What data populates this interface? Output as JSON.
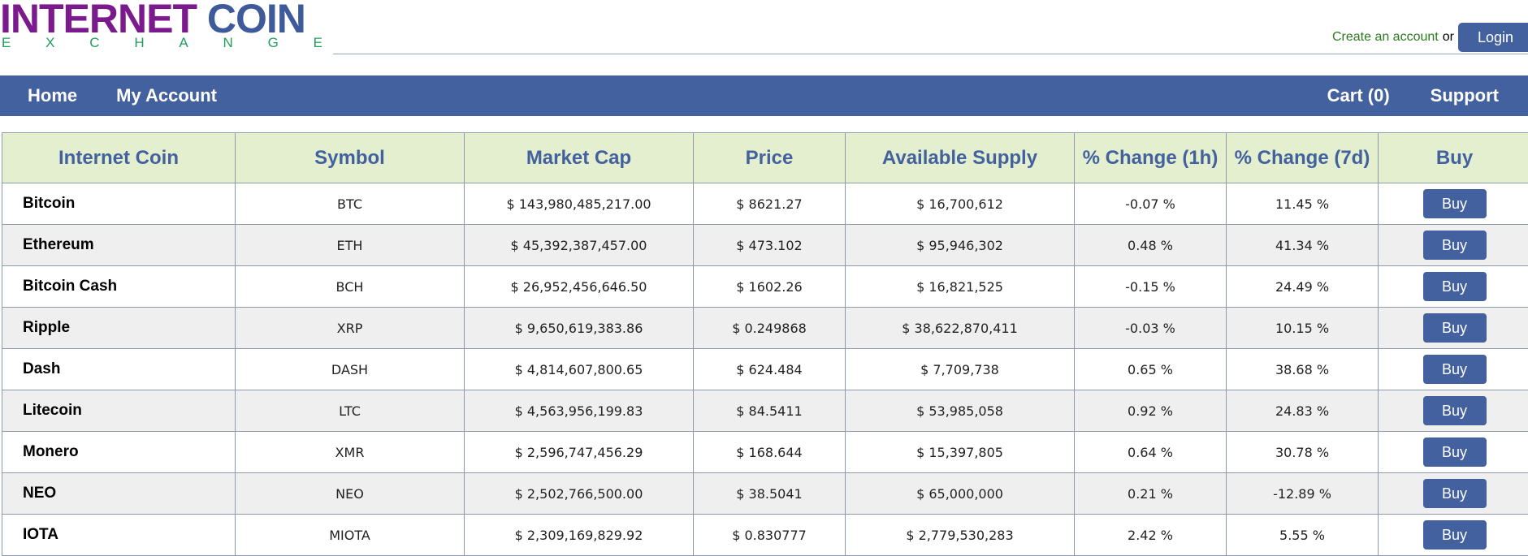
{
  "logo": {
    "top_word1": "INTERNET",
    "top_word2": "COIN",
    "bottom_letters": [
      "E",
      "X",
      "C",
      "H",
      "A",
      "N",
      "G",
      "E"
    ]
  },
  "account": {
    "create_label": "Create an account",
    "or_label": "or",
    "login_label": "Login"
  },
  "nav": {
    "home": "Home",
    "my_account": "My Account",
    "cart": "Cart (0)",
    "support": "Support"
  },
  "table": {
    "headers": [
      "Internet Coin",
      "Symbol",
      "Market Cap",
      "Price",
      "Available Supply",
      "% Change (1h)",
      "% Change (7d)",
      "Buy"
    ],
    "buy_label": "Buy",
    "rows": [
      {
        "name": "Bitcoin",
        "symbol": "BTC",
        "market_cap": "$ 143,980,485,217.00",
        "price": "$ 8621.27",
        "supply": "$ 16,700,612",
        "change_1h": "-0.07 %",
        "change_7d": "11.45 %"
      },
      {
        "name": "Ethereum",
        "symbol": "ETH",
        "market_cap": "$ 45,392,387,457.00",
        "price": "$ 473.102",
        "supply": "$ 95,946,302",
        "change_1h": "0.48 %",
        "change_7d": "41.34 %"
      },
      {
        "name": "Bitcoin Cash",
        "symbol": "BCH",
        "market_cap": "$ 26,952,456,646.50",
        "price": "$ 1602.26",
        "supply": "$ 16,821,525",
        "change_1h": "-0.15 %",
        "change_7d": "24.49 %"
      },
      {
        "name": "Ripple",
        "symbol": "XRP",
        "market_cap": "$ 9,650,619,383.86",
        "price": "$ 0.249868",
        "supply": "$ 38,622,870,411",
        "change_1h": "-0.03 %",
        "change_7d": "10.15 %"
      },
      {
        "name": "Dash",
        "symbol": "DASH",
        "market_cap": "$ 4,814,607,800.65",
        "price": "$ 624.484",
        "supply": "$ 7,709,738",
        "change_1h": "0.65 %",
        "change_7d": "38.68 %"
      },
      {
        "name": "Litecoin",
        "symbol": "LTC",
        "market_cap": "$ 4,563,956,199.83",
        "price": "$ 84.5411",
        "supply": "$ 53,985,058",
        "change_1h": "0.92 %",
        "change_7d": "24.83 %"
      },
      {
        "name": "Monero",
        "symbol": "XMR",
        "market_cap": "$ 2,596,747,456.29",
        "price": "$ 168.644",
        "supply": "$ 15,397,805",
        "change_1h": "0.64 %",
        "change_7d": "30.78 %"
      },
      {
        "name": "NEO",
        "symbol": "NEO",
        "market_cap": "$ 2,502,766,500.00",
        "price": "$ 38.5041",
        "supply": "$ 65,000,000",
        "change_1h": "0.21 %",
        "change_7d": "-12.89 %"
      },
      {
        "name": "IOTA",
        "symbol": "MIOTA",
        "market_cap": "$ 2,309,169,829.92",
        "price": "$ 0.830777",
        "supply": "$ 2,779,530,283",
        "change_1h": "2.42 %",
        "change_7d": "5.55 %"
      }
    ]
  },
  "colors": {
    "brand_purple": "#7a1a8c",
    "brand_blue": "#43619e",
    "brand_green": "#1fa05a",
    "header_row_bg": "#e4efcf",
    "stripe_bg": "#efefef"
  }
}
